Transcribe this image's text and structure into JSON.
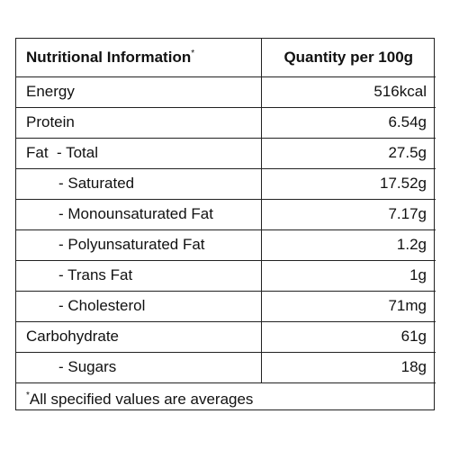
{
  "header": {
    "col1": "Nutritional Information",
    "col1_mark": "*",
    "col2": "Quantity per 100g"
  },
  "rows": [
    {
      "label": "Energy",
      "value": "516kcal"
    },
    {
      "label": "Protein",
      "value": "6.54g"
    },
    {
      "label_prefix": "Fat",
      "label": "- Total",
      "value": "27.5g"
    },
    {
      "label": "- Saturated",
      "value": "17.52g"
    },
    {
      "label": "- Monounsaturated Fat",
      "value": "7.17g"
    },
    {
      "label": "- Polyunsaturated Fat",
      "value": "1.2g"
    },
    {
      "label": "- Trans Fat",
      "value": "1g"
    },
    {
      "label": "- Cholesterol",
      "value": "71mg"
    },
    {
      "label": "Carbohydrate",
      "value": "61g"
    },
    {
      "label": "- Sugars",
      "value": "18g"
    }
  ],
  "footnote": {
    "mark": "*",
    "text": "All specified values are averages"
  }
}
